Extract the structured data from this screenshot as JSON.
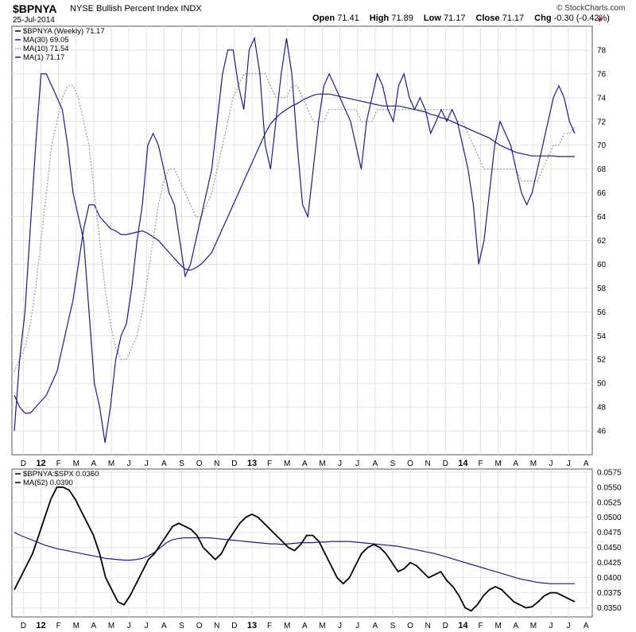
{
  "header": {
    "symbol": "$BPNYA",
    "description": "NYSE Bullish Percent Index",
    "exchange": "INDX",
    "date": "25-Jul-2014",
    "open_label": "Open",
    "open": "71.41",
    "high_label": "High",
    "high": "71.89",
    "low_label": "Low",
    "low": "71.17",
    "close_label": "Close",
    "close": "71.17",
    "chg_label": "Chg",
    "chg": "-0.30 (-0.42%)",
    "logo": "© StockCharts.com",
    "down_color": "#b0102a",
    "up_color": "#000000"
  },
  "chart_data": [
    {
      "type": "line",
      "title": "$BPNYA (Weekly) 71.17",
      "legend_placement": "top-left",
      "legend": [
        "$BPNYA (Weekly) 71.17",
        "MA(30) 69.05",
        "MA(10) 71.54",
        "MA(1) 71.17"
      ],
      "x_tick_labels": [
        "D",
        "12",
        "F",
        "M",
        "A",
        "M",
        "J",
        "J",
        "A",
        "S",
        "O",
        "N",
        "D",
        "13",
        "F",
        "M",
        "A",
        "M",
        "J",
        "J",
        "A",
        "S",
        "O",
        "N",
        "D",
        "14",
        "F",
        "M",
        "A",
        "M",
        "J",
        "J",
        "A"
      ],
      "ylim": [
        44,
        80
      ],
      "y_ticks": [
        46,
        48,
        50,
        52,
        54,
        56,
        58,
        60,
        62,
        64,
        66,
        68,
        70,
        72,
        74,
        76,
        78
      ],
      "grid": true,
      "series": [
        {
          "name": "MA(1) 71.17",
          "color": "#1a1a8c",
          "style": "solid",
          "values": [
            46,
            52,
            56,
            63,
            70,
            76,
            76,
            75,
            74,
            73,
            70,
            66,
            64,
            62,
            56,
            50,
            48,
            45,
            48,
            52,
            54,
            55,
            58,
            62,
            65,
            70,
            71,
            70,
            68,
            66,
            65,
            62,
            59,
            60,
            62,
            64,
            66,
            68,
            72,
            76,
            78,
            78,
            75,
            73,
            78,
            79,
            76,
            70,
            68,
            72,
            76,
            79,
            76,
            70,
            65,
            64,
            68,
            72,
            75,
            76,
            75,
            74,
            73,
            72,
            70,
            68,
            72,
            74,
            76,
            75,
            73,
            72,
            75,
            76,
            74,
            73,
            74,
            73,
            71,
            72,
            73,
            72,
            73,
            72,
            70,
            68,
            65,
            60,
            62,
            66,
            70,
            72,
            71,
            70,
            68,
            66,
            65,
            66,
            68,
            70,
            72,
            74,
            75,
            74,
            72,
            71
          ]
        },
        {
          "name": "MA(10) 71.54",
          "color": "#999999",
          "style": "dotted",
          "values": [
            51,
            52,
            53,
            55,
            58,
            62,
            66,
            70,
            72,
            74,
            75,
            75,
            74,
            72,
            70,
            66,
            62,
            58,
            55,
            53,
            52,
            52,
            53,
            54,
            56,
            59,
            62,
            65,
            67,
            68,
            68,
            67,
            66,
            65,
            64,
            64,
            65,
            66,
            68,
            70,
            72,
            74,
            75,
            76,
            76,
            76,
            76,
            76,
            75,
            74,
            74,
            74,
            75,
            75,
            74,
            73,
            72,
            72,
            72,
            73,
            73,
            73,
            73,
            73,
            73,
            72,
            72,
            72,
            73,
            73,
            73,
            73,
            73,
            73,
            73,
            73,
            73,
            73,
            73,
            73,
            73,
            73,
            73,
            72,
            72,
            71,
            70,
            69,
            68,
            68,
            68,
            68,
            68,
            68,
            68,
            67,
            67,
            67,
            67,
            68,
            69,
            70,
            70,
            71,
            71,
            71.54
          ]
        },
        {
          "name": "MA(30) 69.05",
          "color": "#1a1a8c",
          "style": "solid",
          "values": [
            49,
            48,
            47.5,
            47.5,
            48,
            48.5,
            49,
            50,
            51,
            53,
            55,
            57,
            60,
            63,
            65,
            65,
            64,
            63.5,
            63,
            62.8,
            62.5,
            62.5,
            62.6,
            62.7,
            62.8,
            62.6,
            62.3,
            62,
            61.5,
            61,
            60.5,
            60,
            59.6,
            59.5,
            59.7,
            60,
            60.5,
            61,
            62,
            63,
            64,
            65,
            66,
            67,
            68,
            69,
            70,
            71,
            71.8,
            72.3,
            72.7,
            73,
            73.3,
            73.5,
            73.8,
            74,
            74.2,
            74.3,
            74.3,
            74.3,
            74.2,
            74.1,
            74,
            73.9,
            73.8,
            73.7,
            73.6,
            73.5,
            73.4,
            73.3,
            73.3,
            73.3,
            73.3,
            73.2,
            73.1,
            73,
            72.9,
            72.8,
            72.6,
            72.5,
            72.3,
            72.2,
            72,
            71.8,
            71.6,
            71.4,
            71.2,
            71,
            70.8,
            70.6,
            70.3,
            70,
            69.8,
            69.6,
            69.4,
            69.3,
            69.2,
            69.1,
            69.1,
            69.1,
            69.1,
            69.1,
            69.05,
            69.05,
            69.05,
            69.05
          ]
        }
      ]
    },
    {
      "type": "line",
      "title": "$BPNYA:$SPX 0.0360",
      "legend_placement": "top-left",
      "legend": [
        "$BPNYA:$SPX 0.0360",
        "MA(52) 0.0390"
      ],
      "x_tick_labels": [
        "D",
        "12",
        "F",
        "M",
        "A",
        "M",
        "J",
        "J",
        "A",
        "S",
        "O",
        "N",
        "D",
        "13",
        "F",
        "M",
        "A",
        "M",
        "J",
        "J",
        "A",
        "S",
        "O",
        "N",
        "D",
        "14",
        "F",
        "M",
        "A",
        "M",
        "J",
        "J",
        "A"
      ],
      "ylim": [
        0.0335,
        0.058
      ],
      "y_tick_labels": [
        "0.0350",
        "0.0375",
        "0.0400",
        "0.0425",
        "0.0450",
        "0.0475",
        "0.0500",
        "0.0525",
        "0.0550",
        "0.0575"
      ],
      "grid": true,
      "series": [
        {
          "name": "$BPNYA:$SPX 0.0360",
          "color": "#000000",
          "style": "solid",
          "values": [
            0.038,
            0.04,
            0.042,
            0.044,
            0.047,
            0.05,
            0.053,
            0.055,
            0.055,
            0.0545,
            0.053,
            0.051,
            0.049,
            0.047,
            0.044,
            0.04,
            0.038,
            0.036,
            0.0355,
            0.037,
            0.039,
            0.041,
            0.043,
            0.044,
            0.0455,
            0.047,
            0.0485,
            0.049,
            0.0485,
            0.048,
            0.047,
            0.045,
            0.044,
            0.043,
            0.044,
            0.046,
            0.0475,
            0.049,
            0.05,
            0.0505,
            0.05,
            0.049,
            0.048,
            0.047,
            0.046,
            0.045,
            0.0445,
            0.0455,
            0.047,
            0.047,
            0.046,
            0.044,
            0.042,
            0.04,
            0.039,
            0.04,
            0.042,
            0.044,
            0.045,
            0.0455,
            0.045,
            0.044,
            0.0425,
            0.041,
            0.0415,
            0.0425,
            0.042,
            0.041,
            0.04,
            0.0405,
            0.041,
            0.0395,
            0.0385,
            0.037,
            0.035,
            0.0345,
            0.0355,
            0.037,
            0.038,
            0.0385,
            0.038,
            0.037,
            0.036,
            0.0355,
            0.035,
            0.0352,
            0.036,
            0.037,
            0.0375,
            0.0375,
            0.037,
            0.0365,
            0.036
          ]
        },
        {
          "name": "MA(52) 0.0390",
          "color": "#1a1a8c",
          "style": "solid",
          "values": [
            0.0475,
            0.047,
            0.0466,
            0.0462,
            0.0458,
            0.0454,
            0.0451,
            0.0448,
            0.0446,
            0.0444,
            0.0442,
            0.044,
            0.0438,
            0.0436,
            0.0434,
            0.0432,
            0.0431,
            0.043,
            0.0429,
            0.0429,
            0.043,
            0.0432,
            0.0436,
            0.0442,
            0.045,
            0.0458,
            0.0463,
            0.0465,
            0.0466,
            0.0466,
            0.0466,
            0.0466,
            0.0466,
            0.0465,
            0.0464,
            0.0463,
            0.0462,
            0.0461,
            0.046,
            0.0459,
            0.0458,
            0.0457,
            0.0456,
            0.0456,
            0.0455,
            0.0456,
            0.0457,
            0.0458,
            0.0458,
            0.0458,
            0.0459,
            0.0459,
            0.046,
            0.046,
            0.046,
            0.046,
            0.0459,
            0.0458,
            0.0457,
            0.0456,
            0.0455,
            0.0454,
            0.0453,
            0.0452,
            0.045,
            0.0448,
            0.0446,
            0.0444,
            0.0442,
            0.044,
            0.0437,
            0.0434,
            0.0431,
            0.0428,
            0.0425,
            0.0422,
            0.0419,
            0.0416,
            0.0413,
            0.041,
            0.0407,
            0.0404,
            0.0401,
            0.0398,
            0.0396,
            0.0394,
            0.0392,
            0.0391,
            0.039,
            0.039,
            0.039,
            0.039,
            0.039
          ]
        }
      ]
    }
  ]
}
